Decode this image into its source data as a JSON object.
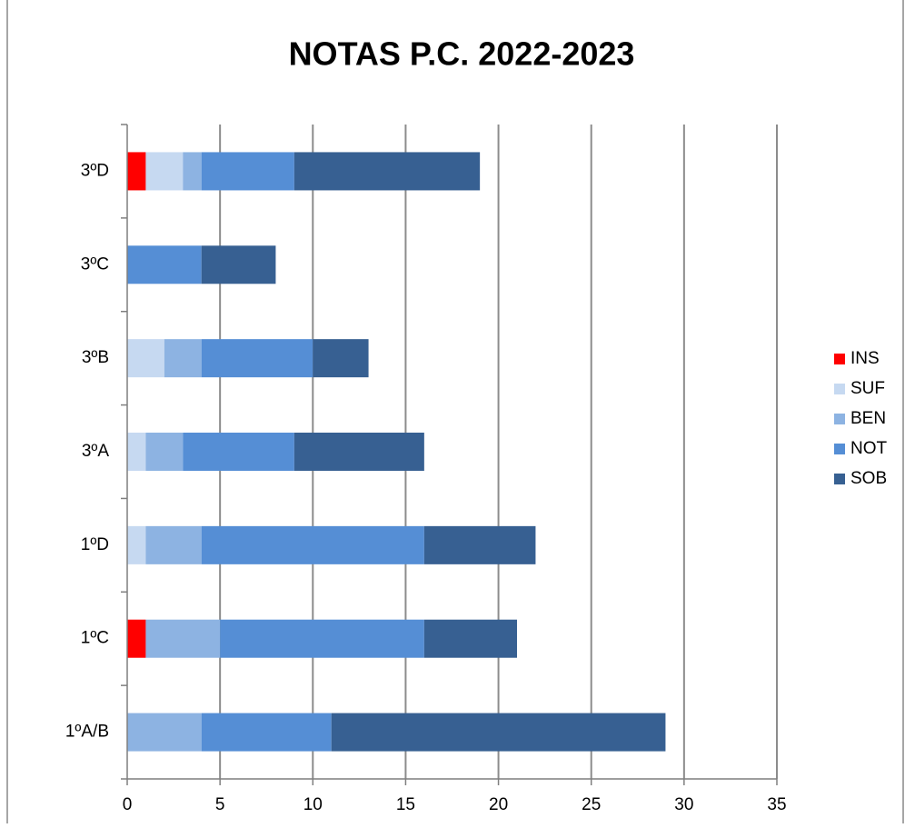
{
  "chart_data": {
    "type": "stacked_bar_horizontal",
    "title": "NOTAS P.C. 2022-2023",
    "categories": [
      "1ºA/B",
      "1ºC",
      "1ºD",
      "3ºA",
      "3ºB",
      "3ºC",
      "3ºD"
    ],
    "series": [
      {
        "name": "INS",
        "color": "#ff0000",
        "values": [
          0,
          1,
          0,
          0,
          0,
          0,
          1
        ]
      },
      {
        "name": "SUF",
        "color": "#c6d9f1",
        "values": [
          0,
          0,
          1,
          1,
          2,
          0,
          2
        ]
      },
      {
        "name": "BEN",
        "color": "#8db3e2",
        "values": [
          4,
          4,
          3,
          2,
          2,
          0,
          1
        ]
      },
      {
        "name": "NOT",
        "color": "#558ed5",
        "values": [
          7,
          11,
          12,
          6,
          6,
          4,
          5
        ]
      },
      {
        "name": "SOB",
        "color": "#376092",
        "values": [
          18,
          5,
          6,
          7,
          3,
          4,
          10
        ]
      }
    ],
    "xlim": [
      0,
      35
    ],
    "xticks": [
      0,
      5,
      10,
      15,
      20,
      25,
      30,
      35
    ],
    "grid": true,
    "legend": "right"
  }
}
